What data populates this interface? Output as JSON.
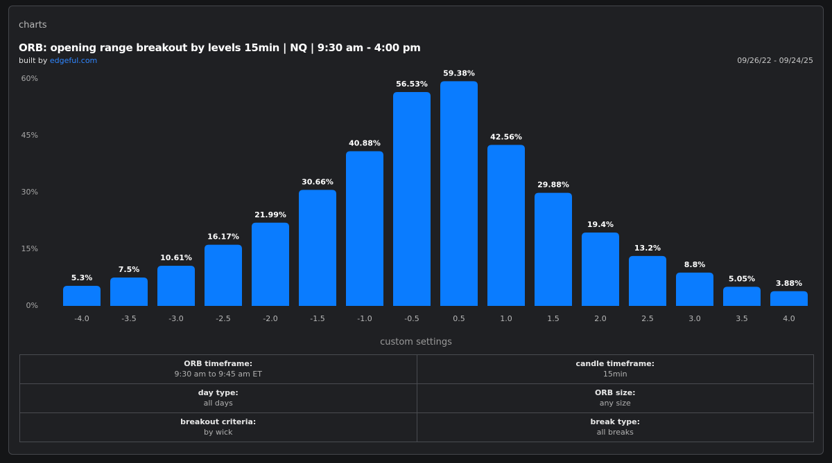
{
  "header": {
    "section": "charts",
    "date_range": "09/26/22 - 09/24/25"
  },
  "chart_data": {
    "type": "bar",
    "title": "ORB: opening range breakout by levels 15min | NQ | 9:30 am - 4:00 pm",
    "subtitle_prefix": "built by",
    "subtitle_link": "edgeful.com",
    "categories": [
      "-4.0",
      "-3.5",
      "-3.0",
      "-2.5",
      "-2.0",
      "-1.5",
      "-1.0",
      "-0.5",
      "0.5",
      "1.0",
      "1.5",
      "2.0",
      "2.5",
      "3.0",
      "3.5",
      "4.0"
    ],
    "values": [
      5.3,
      7.5,
      10.61,
      16.17,
      21.99,
      30.66,
      40.88,
      56.53,
      59.38,
      42.56,
      29.88,
      19.4,
      13.2,
      8.8,
      5.05,
      3.88
    ],
    "value_labels": [
      "5.3%",
      "7.5%",
      "10.61%",
      "16.17%",
      "21.99%",
      "30.66%",
      "40.88%",
      "56.53%",
      "59.38%",
      "42.56%",
      "29.88%",
      "19.4%",
      "13.2%",
      "8.8%",
      "5.05%",
      "3.88%"
    ],
    "color": "#0a7cff",
    "ylim": [
      0,
      60
    ],
    "yticks": [
      {
        "value": 0,
        "label": "0%"
      },
      {
        "value": 15,
        "label": "15%"
      },
      {
        "value": 30,
        "label": "30%"
      },
      {
        "value": 45,
        "label": "45%"
      },
      {
        "value": 60,
        "label": "60%"
      }
    ]
  },
  "settings": {
    "title": "custom settings",
    "rows": [
      [
        {
          "label": "ORB timeframe:",
          "value": "9:30 am to 9:45 am ET"
        },
        {
          "label": "candle timeframe:",
          "value": "15min"
        }
      ],
      [
        {
          "label": "day type:",
          "value": "all days"
        },
        {
          "label": "ORB size:",
          "value": "any size"
        }
      ],
      [
        {
          "label": "breakout criteria:",
          "value": "by wick"
        },
        {
          "label": "break type:",
          "value": "all breaks"
        }
      ]
    ]
  }
}
